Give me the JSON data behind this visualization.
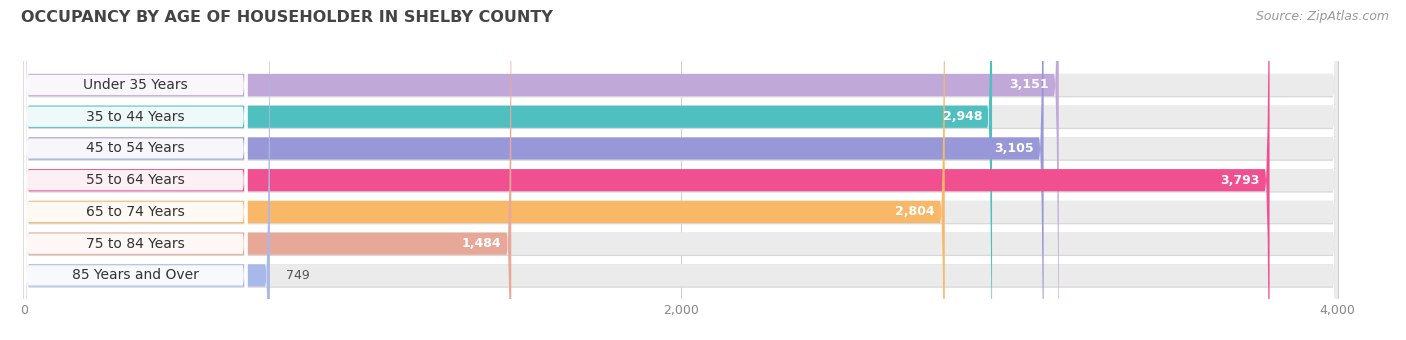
{
  "title": "OCCUPANCY BY AGE OF HOUSEHOLDER IN SHELBY COUNTY",
  "source": "Source: ZipAtlas.com",
  "categories": [
    "Under 35 Years",
    "35 to 44 Years",
    "45 to 54 Years",
    "55 to 64 Years",
    "65 to 74 Years",
    "75 to 84 Years",
    "85 Years and Over"
  ],
  "values": [
    3151,
    2948,
    3105,
    3793,
    2804,
    1484,
    749
  ],
  "bar_colors": [
    "#c0a8d8",
    "#50bfc0",
    "#9898d8",
    "#f05090",
    "#f8b868",
    "#e8a898",
    "#a8b8e8"
  ],
  "xlim": [
    0,
    4000
  ],
  "xticks": [
    0,
    2000,
    4000
  ],
  "bg_color": "#ffffff",
  "bar_bg_color": "#ebebeb",
  "title_fontsize": 11.5,
  "source_fontsize": 9,
  "label_fontsize": 10,
  "value_fontsize": 9,
  "bar_height": 0.7,
  "fig_width": 14.06,
  "fig_height": 3.4
}
